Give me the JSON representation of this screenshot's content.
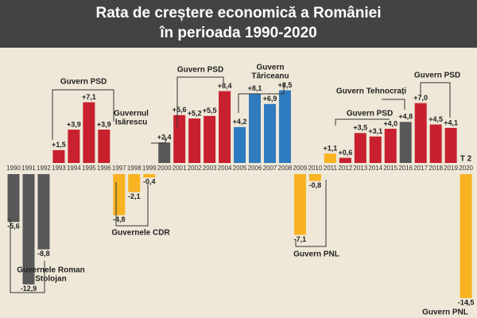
{
  "chart_data": {
    "type": "bar",
    "title": [
      "Rata de creștere economică a României",
      "în perioada 1990-2020"
    ],
    "categories": [
      "1990",
      "1991",
      "1992",
      "1993",
      "1994",
      "1995",
      "1996",
      "1997",
      "1998",
      "1999",
      "2000",
      "2001",
      "2002",
      "2003",
      "2004",
      "2005",
      "2006",
      "2007",
      "2008",
      "2009",
      "2010",
      "2011",
      "2012",
      "2013",
      "2014",
      "2015",
      "2016",
      "2017",
      "2018",
      "2019",
      "2020"
    ],
    "values": [
      -5.6,
      -12.9,
      -8.8,
      1.5,
      3.9,
      7.1,
      3.9,
      -4.8,
      -2.1,
      -0.4,
      2.4,
      5.6,
      5.2,
      5.5,
      8.4,
      4.2,
      8.1,
      6.9,
      8.5,
      -7.1,
      -0.8,
      1.1,
      0.6,
      3.5,
      3.1,
      4.0,
      4.8,
      7.0,
      4.5,
      4.1,
      -14.5
    ],
    "value_labels": [
      "-5,6",
      "-12,9",
      "-8,8",
      "+1,5",
      "+3,9",
      "+7,1",
      "+3,9",
      "-4,8",
      "-2,1",
      "-0,4",
      "+2,4",
      "+5,6",
      "+5,2",
      "+5,5",
      "+8,4",
      "+4,2",
      "+8,1",
      "+6,9",
      "+8,5",
      "-7,1",
      "-0,8",
      "+1,1",
      "+0,6",
      "+3,5",
      "+3,1",
      "+4,0",
      "+4,8",
      "+7,0",
      "+4,5",
      "+4,1",
      "-14,5"
    ],
    "colors": [
      "#58585a",
      "#58585a",
      "#58585a",
      "#c8202f",
      "#c8202f",
      "#c8202f",
      "#c8202f",
      "#f9b322",
      "#f9b322",
      "#f9b322",
      "#58585a",
      "#c8202f",
      "#c8202f",
      "#c8202f",
      "#c8202f",
      "#2f7bc0",
      "#2f7bc0",
      "#2f7bc0",
      "#2f7bc0",
      "#f9b322",
      "#f9b322",
      "#f9b322",
      "#c8202f",
      "#c8202f",
      "#c8202f",
      "#c8202f",
      "#58585a",
      "#c8202f",
      "#c8202f",
      "#c8202f",
      "#f9b322"
    ],
    "annotations": [
      [
        "Guvern PSD"
      ],
      [
        "Guvernul",
        "Isărescu"
      ],
      [
        "Guvern PSD"
      ],
      [
        "Guvern",
        "Tăriceanu"
      ],
      [
        "Guvern Tehnocrați"
      ],
      [
        "Guvern PSD"
      ],
      [
        "Guvern PSD"
      ],
      [
        "Guvernele CDR"
      ],
      [
        "Guvern PNL"
      ],
      [
        "Guvernele Roman",
        "Stolojan"
      ],
      [
        "Guvern PNL"
      ],
      [
        "T 2"
      ]
    ]
  }
}
